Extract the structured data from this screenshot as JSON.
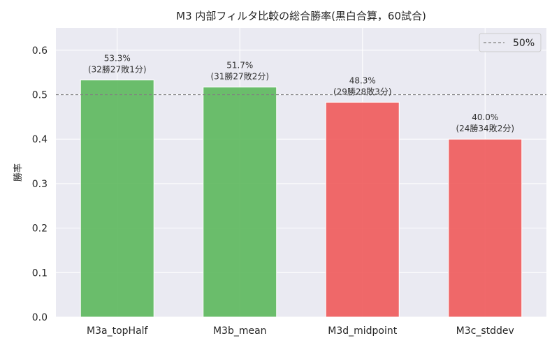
{
  "chart_data": {
    "type": "bar",
    "title": "M3 内部フィルタ比較の総合勝率(黒白合算，60試合)",
    "xlabel": "",
    "ylabel": "勝率",
    "ylim": [
      0,
      0.65
    ],
    "yticks": [
      "0.0",
      "0.1",
      "0.2",
      "0.3",
      "0.4",
      "0.5",
      "0.6"
    ],
    "categories": [
      "M3a_topHalf",
      "M3b_mean",
      "M3d_midpoint",
      "M3c_stddev"
    ],
    "values": [
      0.533,
      0.517,
      0.483,
      0.4
    ],
    "bar_labels": [
      [
        "53.3%",
        "(32勝27敗1分)"
      ],
      [
        "51.7%",
        "(31勝27敗2分)"
      ],
      [
        "48.3%",
        "(29勝28敗3分)"
      ],
      [
        "40.0%",
        "(24勝34敗2分)"
      ]
    ],
    "bar_colors": [
      "#5cb85c",
      "#5cb85c",
      "#f05a5a",
      "#f05a5a"
    ],
    "reference_line": {
      "value": 0.5,
      "label": "50%",
      "style": "dashed",
      "color": "#808080"
    },
    "legend": {
      "position": "top-right",
      "entries": [
        "50%"
      ]
    },
    "grid": true,
    "background": "#eaeaf2"
  }
}
